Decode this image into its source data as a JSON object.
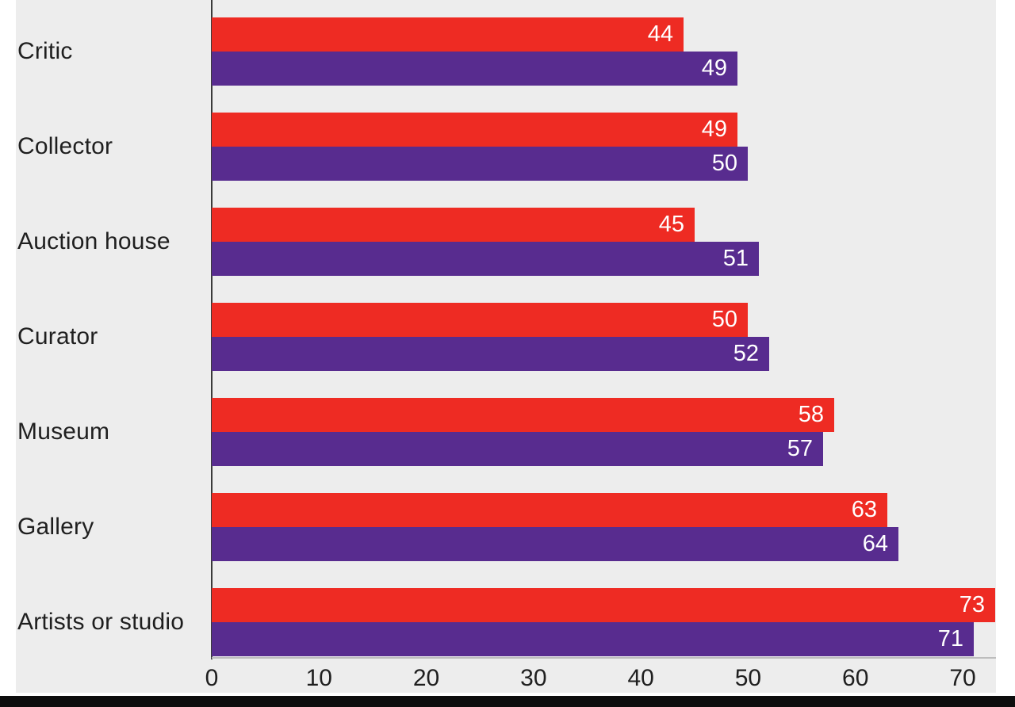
{
  "chart_data": {
    "type": "bar",
    "orientation": "horizontal",
    "title": "",
    "xlabel": "",
    "ylabel": "",
    "categories": [
      "Critic",
      "Collector",
      "Auction house",
      "Curator",
      "Museum",
      "Gallery",
      "Artists or studio"
    ],
    "series": [
      {
        "name": "red-series",
        "color": "#ee2b23",
        "values": [
          44,
          49,
          45,
          50,
          58,
          63,
          73
        ]
      },
      {
        "name": "purple-series",
        "color": "#582c8f",
        "values": [
          49,
          50,
          51,
          52,
          57,
          64,
          71
        ]
      }
    ],
    "value_labels": "inside-end",
    "value_label_color": "#ffffff",
    "x_ticks": [
      "0",
      "10",
      "20",
      "30",
      "40",
      "50",
      "60",
      "70"
    ],
    "x_tick_values": [
      0,
      10,
      20,
      30,
      40,
      50,
      60,
      70
    ],
    "xlim": [
      0,
      74.5
    ],
    "grid": "off",
    "legend": "none",
    "panel_background": "#ededed"
  }
}
